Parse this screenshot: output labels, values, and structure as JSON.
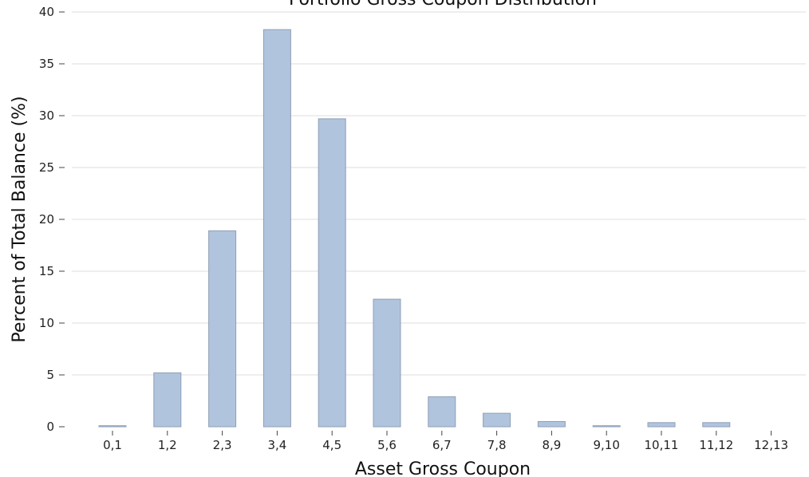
{
  "chart_data": {
    "type": "bar",
    "title": "Portfolio Gross Coupon Distribution",
    "xlabel": "Asset Gross Coupon",
    "ylabel": "Percent of Total Balance (%)",
    "categories": [
      "0,1",
      "1,2",
      "2,3",
      "3,4",
      "4,5",
      "5,6",
      "6,7",
      "7,8",
      "8,9",
      "9,10",
      "10,11",
      "11,12",
      "12,13"
    ],
    "values": [
      0.1,
      5.2,
      18.9,
      38.3,
      29.7,
      12.3,
      2.9,
      1.3,
      0.5,
      0.1,
      0.4,
      0.4,
      0
    ],
    "ylim": [
      0,
      40
    ],
    "yticks": [
      0,
      5,
      10,
      15,
      20,
      25,
      30,
      35,
      40
    ],
    "grid": "horizontal",
    "bar_color": "#b0c4de"
  }
}
